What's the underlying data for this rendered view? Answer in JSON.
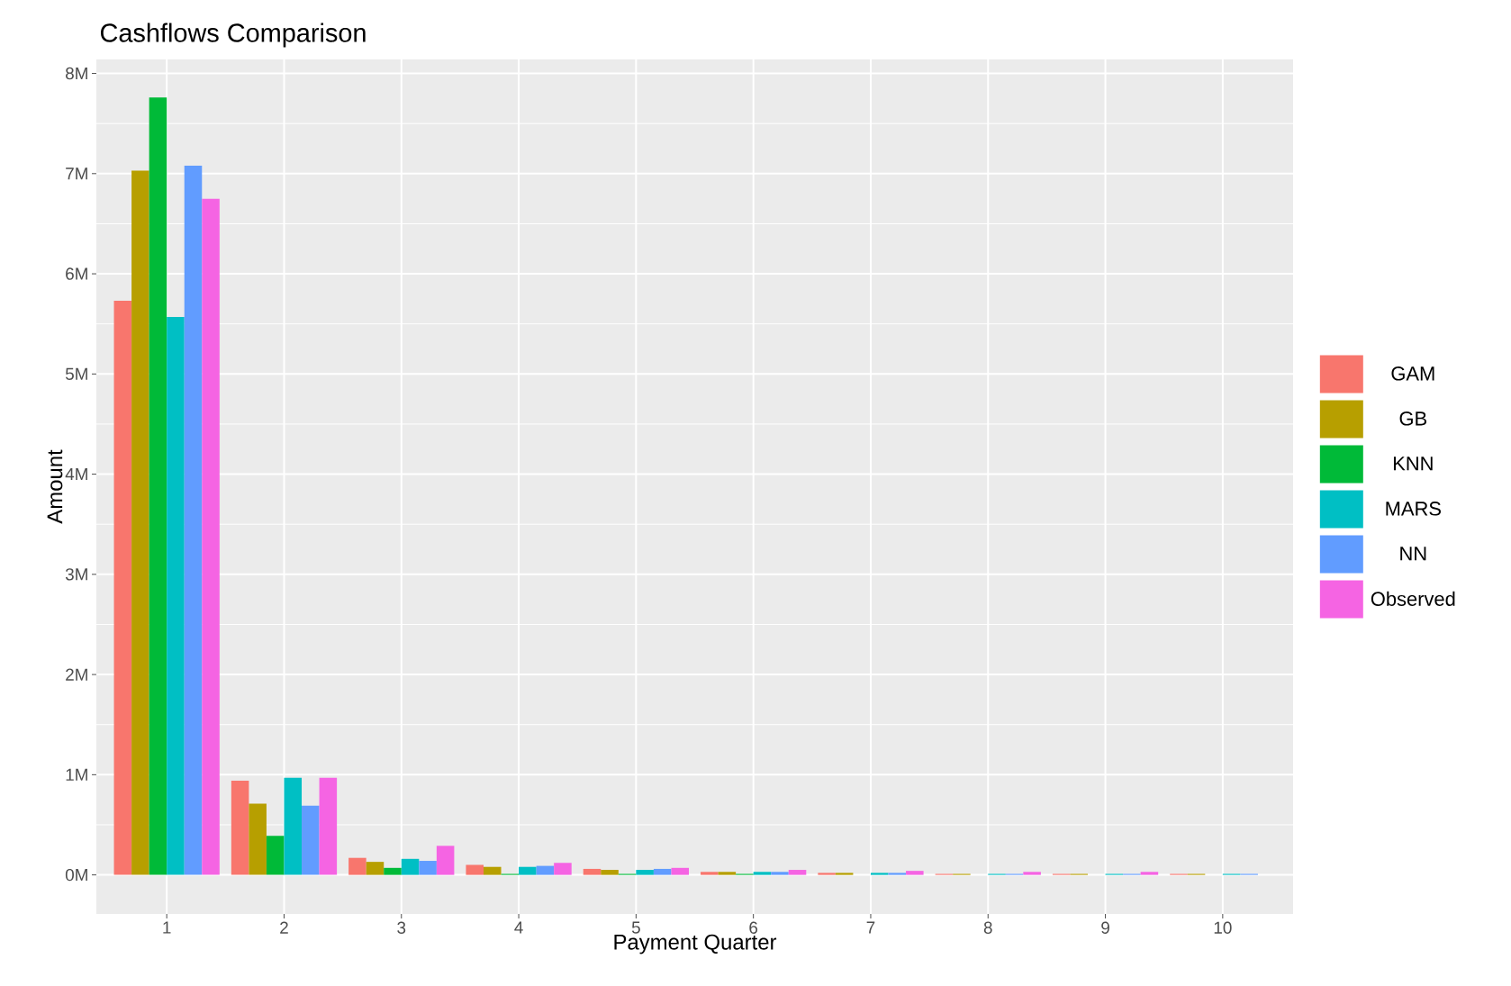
{
  "chart_data": {
    "type": "bar",
    "title": "Cashflows Comparison",
    "xlabel": "Payment Quarter",
    "ylabel": "Amount",
    "categories": [
      "1",
      "2",
      "3",
      "4",
      "5",
      "6",
      "7",
      "8",
      "9",
      "10"
    ],
    "series": [
      {
        "name": "GAM",
        "color": "#f8766d",
        "values": [
          5.73,
          0.94,
          0.17,
          0.1,
          0.06,
          0.03,
          0.02,
          0.01,
          0.01,
          0.01
        ]
      },
      {
        "name": "GB",
        "color": "#b79f00",
        "values": [
          7.03,
          0.71,
          0.13,
          0.08,
          0.05,
          0.03,
          0.02,
          0.01,
          0.01,
          0.01
        ]
      },
      {
        "name": "KNN",
        "color": "#00ba38",
        "values": [
          7.76,
          0.39,
          0.07,
          0.01,
          0.01,
          0.01,
          0,
          0,
          0,
          0
        ]
      },
      {
        "name": "MARS",
        "color": "#00bfc4",
        "values": [
          5.57,
          0.97,
          0.16,
          0.08,
          0.05,
          0.03,
          0.02,
          0.01,
          0.01,
          0.01
        ]
      },
      {
        "name": "NN",
        "color": "#619cff",
        "values": [
          7.08,
          0.69,
          0.14,
          0.09,
          0.06,
          0.03,
          0.02,
          0.01,
          0.01,
          0.01
        ]
      },
      {
        "name": "Observed",
        "color": "#f564e3",
        "values": [
          6.75,
          0.97,
          0.29,
          0.12,
          0.07,
          0.05,
          0.04,
          0.03,
          0.03,
          0
        ]
      }
    ],
    "ylim": [
      -0.39,
      8.14
    ],
    "yticks": [
      {
        "value": 0,
        "label": "0M"
      },
      {
        "value": 1,
        "label": "1M"
      },
      {
        "value": 2,
        "label": "2M"
      },
      {
        "value": 3,
        "label": "3M"
      },
      {
        "value": 4,
        "label": "4M"
      },
      {
        "value": 5,
        "label": "5M"
      },
      {
        "value": 6,
        "label": "6M"
      },
      {
        "value": 7,
        "label": "7M"
      },
      {
        "value": 8,
        "label": "8M"
      }
    ],
    "grid": true,
    "legend": "right"
  }
}
